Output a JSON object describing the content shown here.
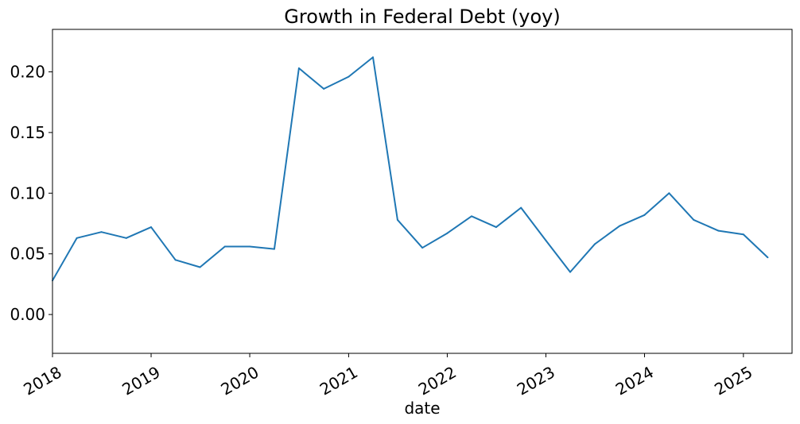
{
  "chart_data": {
    "type": "line",
    "title": "Growth in Federal Debt (yoy)",
    "xlabel": "date",
    "ylabel": "",
    "x_ticks": [
      "2018",
      "2019",
      "2020",
      "2021",
      "2022",
      "2023",
      "2024",
      "2025"
    ],
    "y_ticks": [
      "0.00",
      "0.05",
      "0.10",
      "0.15",
      "0.20"
    ],
    "xlim": [
      "2018-01-01",
      "2025-06-30"
    ],
    "ylim": [
      -0.032,
      0.235
    ],
    "grid": false,
    "line_color": "#1f77b4",
    "series": [
      {
        "x": [
          "2018-01-01",
          "2018-04-01",
          "2018-07-01",
          "2018-10-01",
          "2019-01-01",
          "2019-04-01",
          "2019-07-01",
          "2019-10-01",
          "2020-01-01",
          "2020-04-01",
          "2020-07-01",
          "2020-10-01",
          "2021-01-01",
          "2021-04-01",
          "2021-07-01",
          "2021-10-01",
          "2022-01-01",
          "2022-04-01",
          "2022-07-01",
          "2022-10-01",
          "2023-01-01",
          "2023-04-01",
          "2023-07-01",
          "2023-10-01",
          "2024-01-01",
          "2024-04-01",
          "2024-07-01",
          "2024-10-01",
          "2025-01-01",
          "2025-04-01"
        ],
        "values": [
          0.028,
          0.063,
          0.068,
          0.063,
          0.072,
          0.045,
          0.039,
          0.056,
          0.056,
          0.054,
          0.203,
          0.186,
          0.196,
          0.212,
          0.078,
          0.055,
          0.067,
          0.081,
          0.072,
          0.088,
          0.061,
          0.035,
          0.058,
          0.073,
          0.082,
          0.1,
          0.078,
          0.069,
          0.066,
          0.047
        ]
      }
    ]
  }
}
